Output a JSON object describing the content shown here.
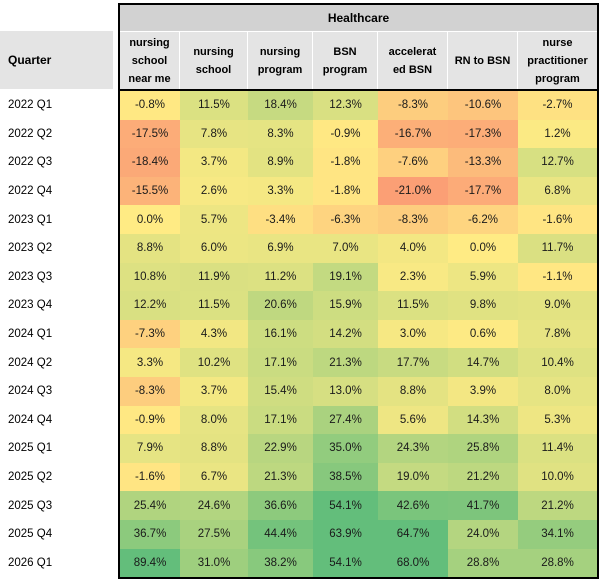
{
  "table": {
    "group_header": "Healthcare",
    "row_header": "Quarter",
    "columns_display": [
      "nursing\nschool\nnear me",
      "nursing\nschool",
      "nursing\nprogram",
      "BSN\nprogram",
      "accelerat\ned BSN",
      "RN to BSN",
      "nurse\npractitioner\nprogram"
    ]
  },
  "chart_data": {
    "type": "heatmap",
    "title": "Healthcare",
    "xlabel": "",
    "ylabel": "Quarter",
    "value_format": "percent_one_decimal",
    "legend_position": "none",
    "grid": false,
    "colormap": {
      "negative_end": "#F8696B",
      "mid_zero": "#FFEB84",
      "positive_end": "#63BE7B"
    },
    "x_categories": [
      "nursing school near me",
      "nursing school",
      "nursing program",
      "BSN program",
      "accelerated BSN",
      "RN to BSN",
      "nurse practitioner program"
    ],
    "y_categories": [
      "2022 Q1",
      "2022 Q2",
      "2022 Q3",
      "2022 Q4",
      "2023 Q1",
      "2023 Q2",
      "2023 Q3",
      "2023 Q4",
      "2024 Q1",
      "2024 Q2",
      "2024 Q3",
      "2024 Q4",
      "2025 Q1",
      "2025 Q2",
      "2025 Q3",
      "2025 Q4",
      "2026 Q1"
    ],
    "values": [
      [
        -0.8,
        11.5,
        18.4,
        12.3,
        -8.3,
        -10.6,
        -2.7
      ],
      [
        -17.5,
        7.8,
        8.3,
        -0.9,
        -16.7,
        -17.3,
        1.2
      ],
      [
        -18.4,
        3.7,
        8.9,
        -1.8,
        -7.6,
        -13.3,
        12.7
      ],
      [
        -15.5,
        2.6,
        3.3,
        -1.8,
        -21.0,
        -17.7,
        6.8
      ],
      [
        0.0,
        5.7,
        -3.4,
        -6.3,
        -8.3,
        -6.2,
        -1.6
      ],
      [
        8.8,
        6.0,
        6.9,
        7.0,
        4.0,
        0.0,
        11.7
      ],
      [
        10.8,
        11.9,
        11.2,
        19.1,
        2.3,
        5.9,
        -1.1
      ],
      [
        12.2,
        11.5,
        20.6,
        15.9,
        11.5,
        9.8,
        9.0
      ],
      [
        -7.3,
        4.3,
        16.1,
        14.2,
        3.0,
        0.6,
        7.8
      ],
      [
        3.3,
        10.2,
        17.1,
        21.3,
        17.7,
        14.7,
        10.4
      ],
      [
        -8.3,
        3.7,
        15.4,
        13.0,
        8.8,
        3.9,
        8.0
      ],
      [
        -0.9,
        8.0,
        17.1,
        27.4,
        5.6,
        14.3,
        5.3
      ],
      [
        7.9,
        8.8,
        22.9,
        35.0,
        24.3,
        25.8,
        11.4
      ],
      [
        -1.6,
        6.7,
        21.3,
        38.5,
        19.0,
        21.2,
        10.0
      ],
      [
        25.4,
        24.6,
        36.6,
        54.1,
        42.6,
        41.7,
        21.2
      ],
      [
        36.7,
        27.5,
        44.4,
        63.9,
        64.7,
        24.0,
        34.1
      ],
      [
        89.4,
        31.0,
        38.2,
        54.1,
        68.0,
        28.8,
        28.8
      ]
    ]
  }
}
